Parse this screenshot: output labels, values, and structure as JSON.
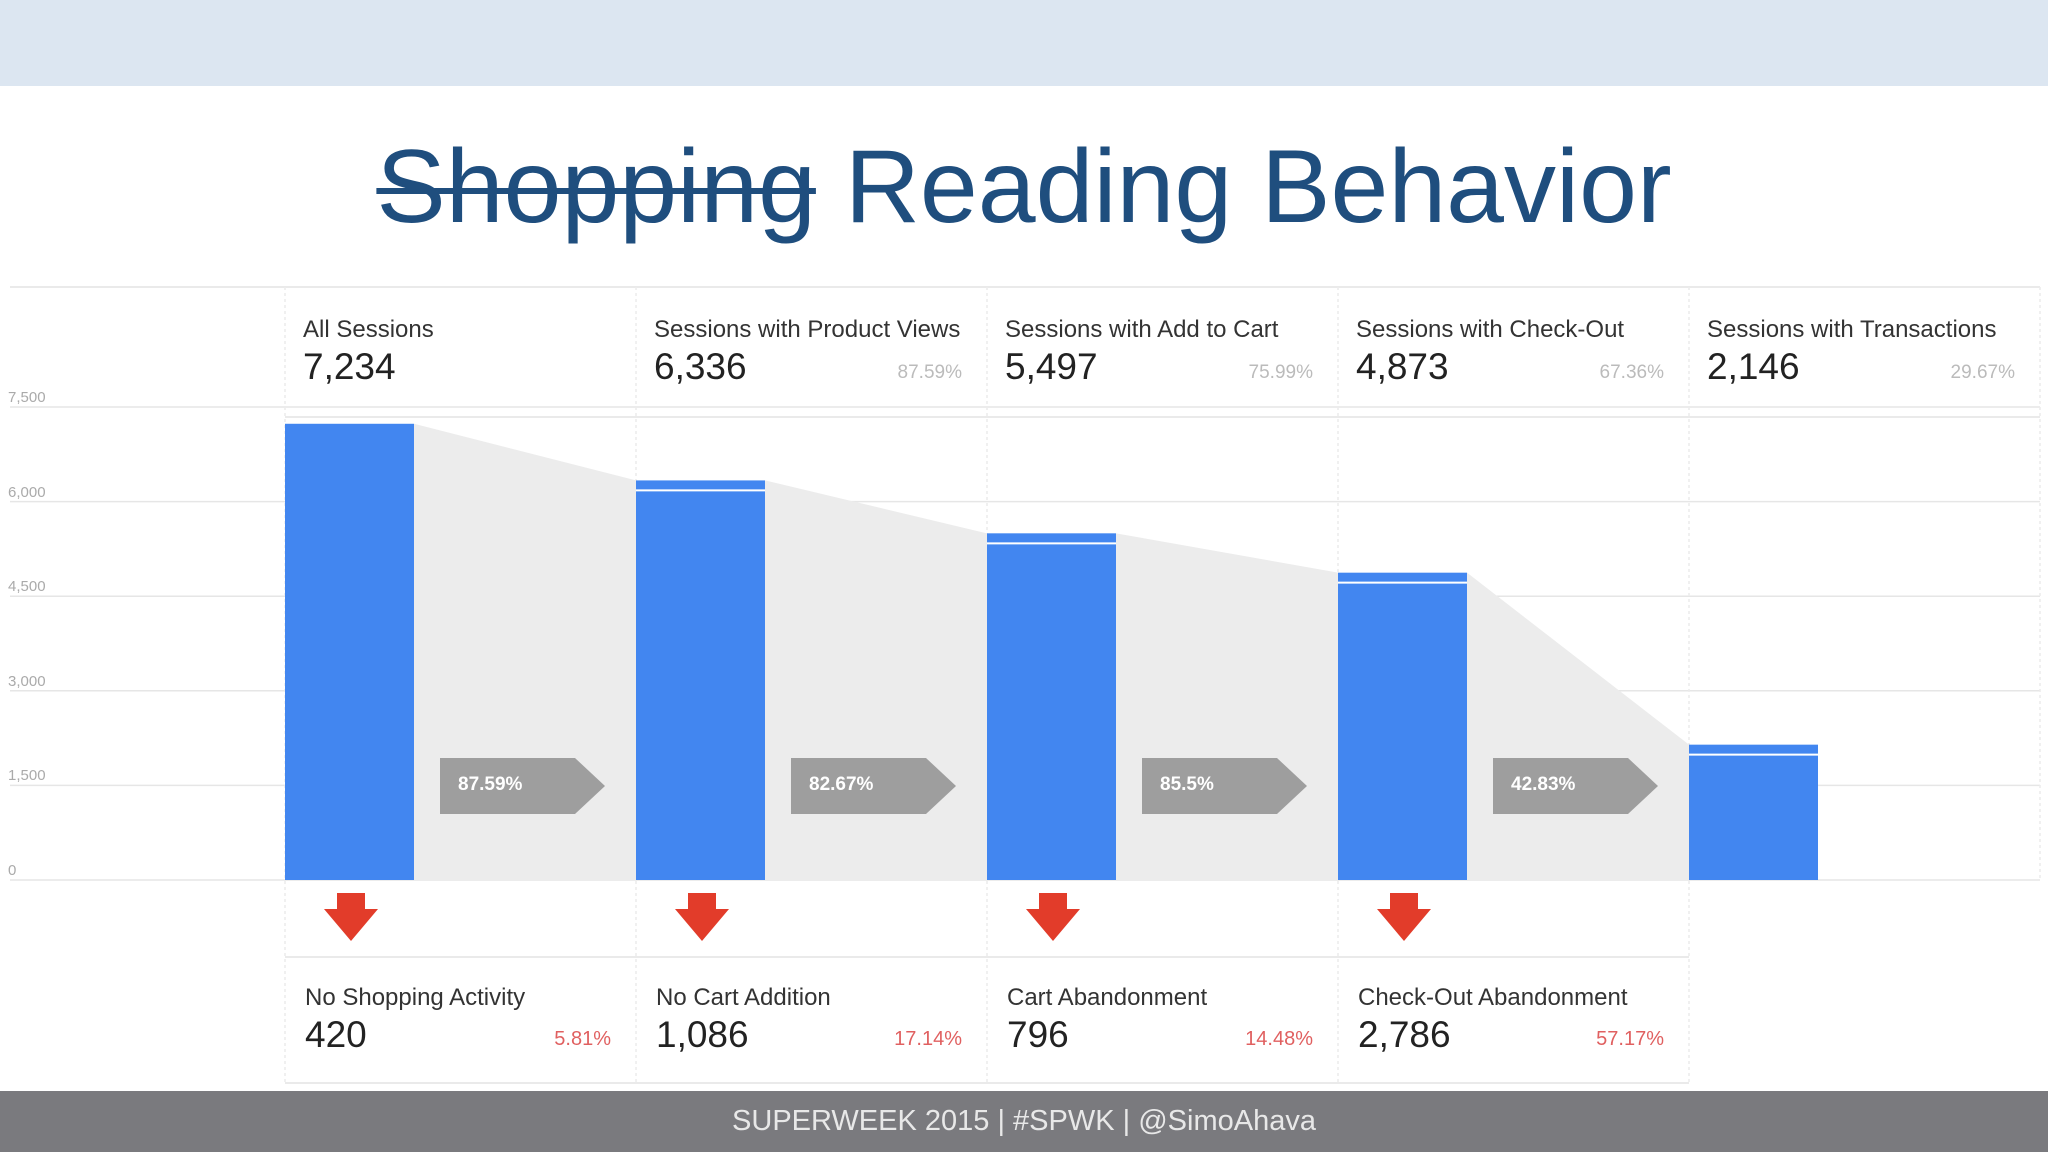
{
  "title": {
    "struck": "Shopping",
    "main": "Reading Behavior"
  },
  "footer": "SUPERWEEK 2015 | #SPWK | @SimoAhava",
  "chart_data": {
    "type": "bar",
    "categories": [
      "All Sessions",
      "Sessions with Product Views",
      "Sessions with Add to Cart",
      "Sessions with Check-Out",
      "Sessions with Transactions"
    ],
    "values": [
      7234,
      6336,
      5497,
      4873,
      2146
    ],
    "value_labels": [
      "7,234",
      "6,336",
      "5,497",
      "4,873",
      "2,146"
    ],
    "step_percents": [
      "",
      "87.59%",
      "75.99%",
      "67.36%",
      "29.67%"
    ],
    "conversion_rates": [
      "87.59%",
      "82.67%",
      "85.5%",
      "42.83%"
    ],
    "abandonment": [
      {
        "label": "No Shopping Activity",
        "value": "420",
        "percent": "5.81%"
      },
      {
        "label": "No Cart Addition",
        "value": "1,086",
        "percent": "17.14%"
      },
      {
        "label": "Cart Abandonment",
        "value": "796",
        "percent": "14.48%"
      },
      {
        "label": "Check-Out Abandonment",
        "value": "2,786",
        "percent": "57.17%"
      }
    ],
    "ylim": [
      0,
      7500
    ],
    "y_ticks": [
      0,
      1500,
      3000,
      4500,
      6000,
      7500
    ],
    "y_tick_labels": [
      "0",
      "1,500",
      "3,000",
      "4,500",
      "6,000",
      "7,500"
    ],
    "grid": true,
    "colors": {
      "bar": "#4286f0",
      "funnel": "#ececec",
      "arrow": "#e23c2a",
      "conversion": "#9e9e9e"
    }
  }
}
